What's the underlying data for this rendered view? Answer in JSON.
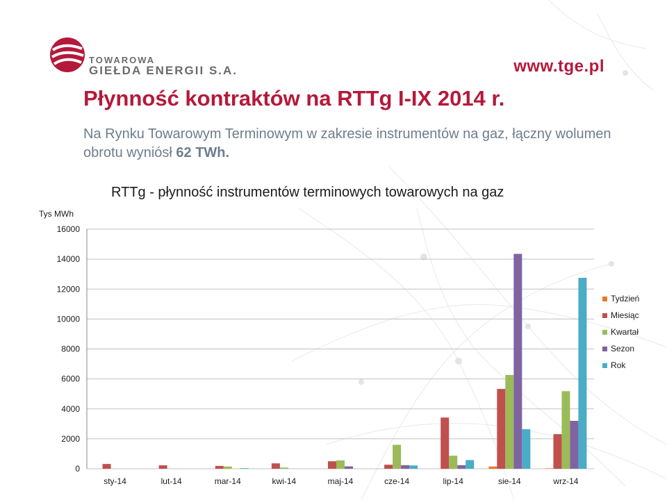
{
  "header": {
    "logo_line1": "TOWAROWA",
    "logo_line2": "GIEŁDA ENERGII S.A.",
    "site_url": "www.tge.pl"
  },
  "page_title": "Płynność kontraktów na RTTg I-IX 2014 r.",
  "intro": {
    "text": "Na Rynku Towarowym Terminowym w zakresie instrumentów na gaz, łączny wolumen obrotu wyniósł ",
    "highlight": "62 TWh."
  },
  "colors": {
    "brand": "#b5193a",
    "intro_text": "#6e7d8c",
    "gridline": "#c0c0c0"
  },
  "chart_data": {
    "type": "bar",
    "title": "RTTg - płynność instrumentów terminowych towarowych na gaz",
    "ylabel": "Tys MWh",
    "xlabel": "",
    "ylim": [
      0,
      16000
    ],
    "yticks": [
      0,
      2000,
      4000,
      6000,
      8000,
      10000,
      12000,
      14000,
      16000
    ],
    "grid": true,
    "legend_position": "right",
    "categories": [
      "sty-14",
      "lut-14",
      "mar-14",
      "kwi-14",
      "maj-14",
      "cze-14",
      "lip-14",
      "sie-14",
      "wrz-14"
    ],
    "series": [
      {
        "name": "Tydzień",
        "color": "#e8782b",
        "values": [
          0,
          0,
          0,
          0,
          0,
          0,
          0,
          150,
          30
        ]
      },
      {
        "name": "Miesiąc",
        "color": "#c0504d",
        "values": [
          320,
          230,
          190,
          360,
          500,
          270,
          3420,
          5330,
          2310
        ]
      },
      {
        "name": "Kwartał",
        "color": "#9bbb59",
        "values": [
          0,
          0,
          150,
          80,
          560,
          1600,
          870,
          6260,
          5180
        ]
      },
      {
        "name": "Sezon",
        "color": "#8064a2",
        "values": [
          0,
          0,
          0,
          0,
          160,
          240,
          240,
          14350,
          3200
        ]
      },
      {
        "name": "Rok",
        "color": "#4bacc6",
        "values": [
          0,
          0,
          40,
          0,
          0,
          220,
          580,
          2640,
          12750
        ]
      }
    ]
  }
}
